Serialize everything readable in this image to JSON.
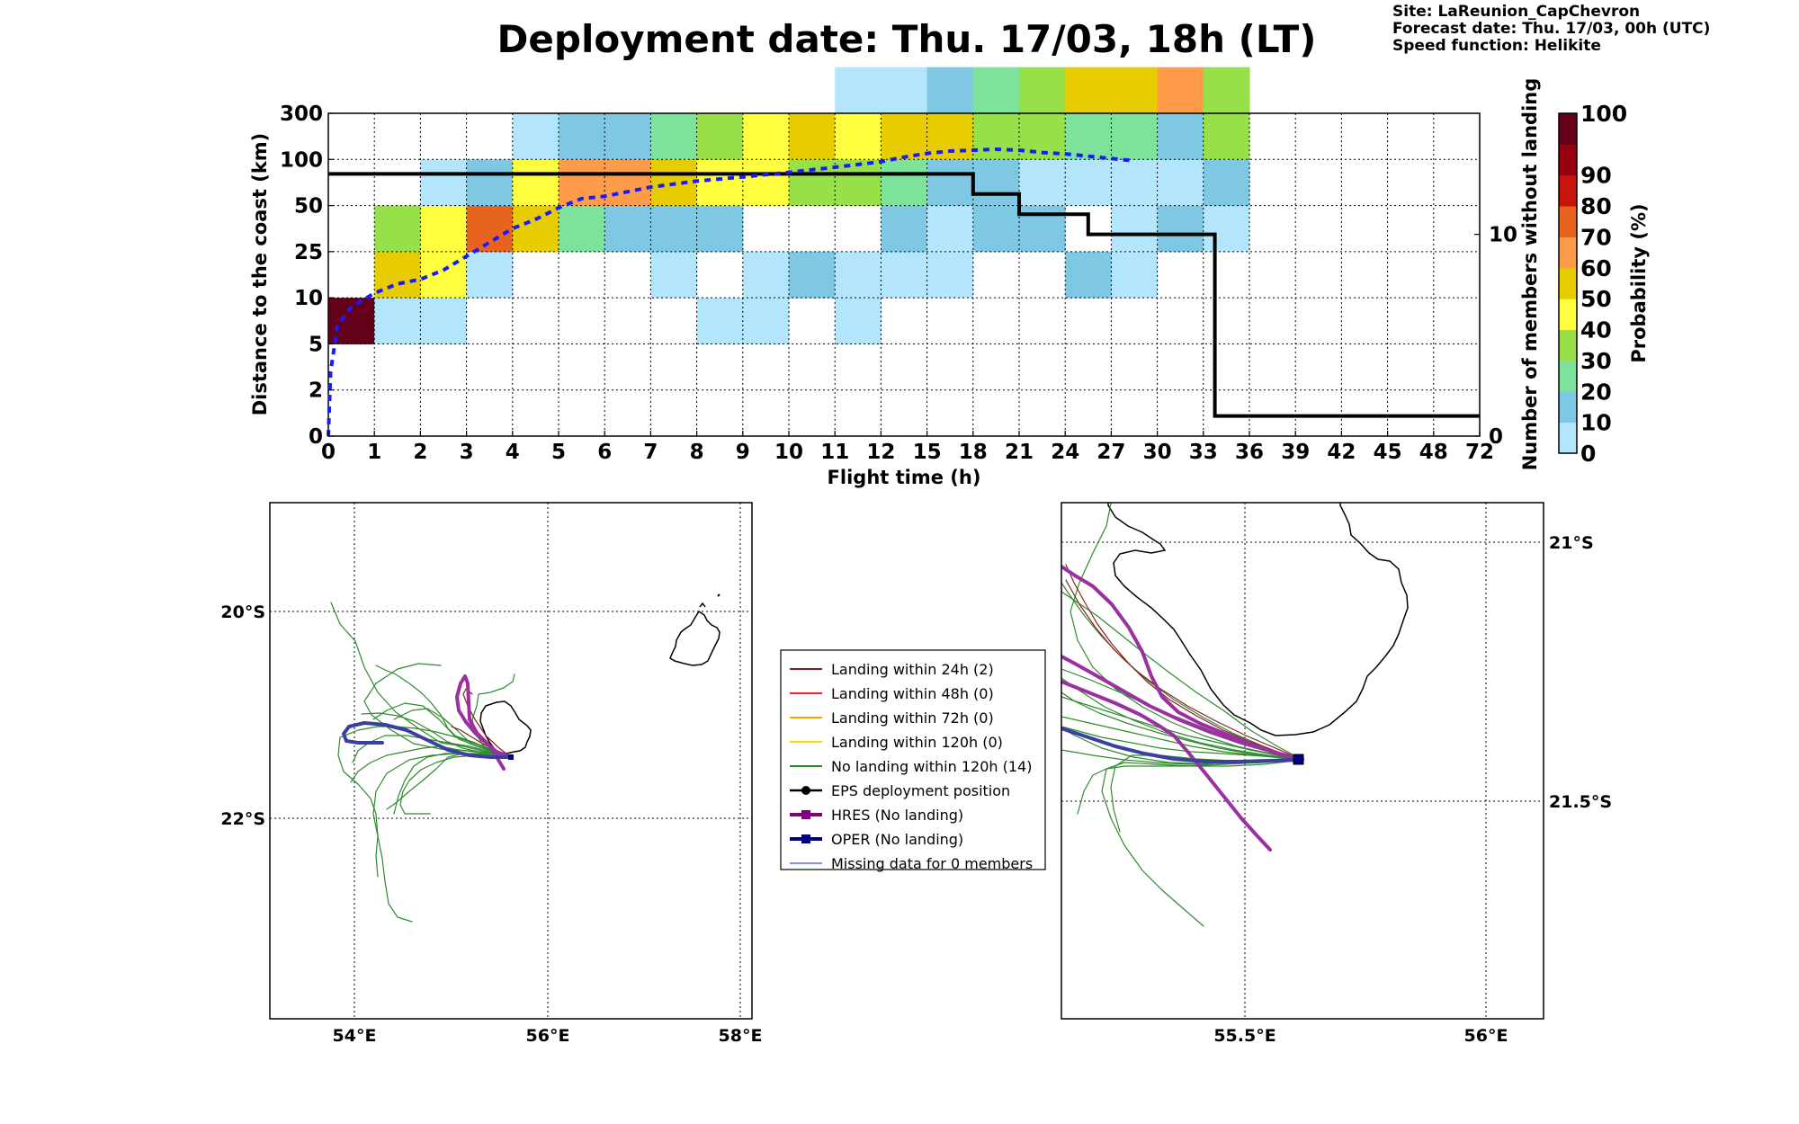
{
  "header": {
    "title": "Deployment date: Thu. 17/03, 18h (LT)",
    "site": "Site: LaReunion_CapChevron",
    "forecast": "Forecast date: Thu. 17/03, 00h (UTC)",
    "speed": "Speed function: Helikite"
  },
  "chart_data": [
    {
      "type": "heatmap",
      "xlabel": "Flight time (h)",
      "ylabel": "Distance to the coast (km)",
      "y2label": "Number of members without landing",
      "colorbar_label": "Probability (%)",
      "x_ticks": [
        "0",
        "1",
        "2",
        "3",
        "4",
        "5",
        "6",
        "7",
        "8",
        "9",
        "10",
        "11",
        "12",
        "15",
        "18",
        "21",
        "24",
        "27",
        "30",
        "33",
        "36",
        "39",
        "42",
        "45",
        "48",
        "72"
      ],
      "y_ticks": [
        "0",
        "2",
        "5",
        "10",
        "25",
        "50",
        "100",
        "300"
      ],
      "y2_ticks": [
        "0",
        "10"
      ],
      "y2_range": [
        0,
        16
      ],
      "colorbar": {
        "ticks": [
          "0",
          "10",
          "20",
          "30",
          "40",
          "50",
          "60",
          "70",
          "80",
          "90",
          "100"
        ],
        "colors": [
          "#b3e5fc",
          "#7ec8e3",
          "#7de39a",
          "#97e04a",
          "#ffff40",
          "#e6cc00",
          "#ff9c4a",
          "#e8641e",
          "#c8140a",
          "#96000f",
          "#640019"
        ]
      },
      "grid": true,
      "cells": [
        {
          "x": 0,
          "y": 2,
          "p": 100
        },
        {
          "x": 1,
          "y": 2,
          "p": 5
        },
        {
          "x": 2,
          "y": 2,
          "p": 5
        },
        {
          "x": 8,
          "y": 2,
          "p": 5
        },
        {
          "x": 9,
          "y": 2,
          "p": 5
        },
        {
          "x": 11,
          "y": 2,
          "p": 5
        },
        {
          "x": 1,
          "y": 3,
          "p": 50
        },
        {
          "x": 2,
          "y": 3,
          "p": 40
        },
        {
          "x": 3,
          "y": 3,
          "p": 5
        },
        {
          "x": 7,
          "y": 3,
          "p": 5
        },
        {
          "x": 9,
          "y": 3,
          "p": 5
        },
        {
          "x": 10,
          "y": 3,
          "p": 15
        },
        {
          "x": 11,
          "y": 3,
          "p": 5
        },
        {
          "x": 12,
          "y": 3,
          "p": 5
        },
        {
          "x": 13,
          "y": 3,
          "p": 5
        },
        {
          "x": 16,
          "y": 3,
          "p": 15
        },
        {
          "x": 17,
          "y": 3,
          "p": 5
        },
        {
          "x": 1,
          "y": 4,
          "p": 30
        },
        {
          "x": 2,
          "y": 4,
          "p": 40
        },
        {
          "x": 3,
          "y": 4,
          "p": 70
        },
        {
          "x": 4,
          "y": 4,
          "p": 50
        },
        {
          "x": 5,
          "y": 4,
          "p": 20
        },
        {
          "x": 6,
          "y": 4,
          "p": 15
        },
        {
          "x": 7,
          "y": 4,
          "p": 15
        },
        {
          "x": 8,
          "y": 4,
          "p": 15
        },
        {
          "x": 12,
          "y": 4,
          "p": 15
        },
        {
          "x": 13,
          "y": 4,
          "p": 5
        },
        {
          "x": 14,
          "y": 4,
          "p": 15
        },
        {
          "x": 15,
          "y": 4,
          "p": 15
        },
        {
          "x": 17,
          "y": 4,
          "p": 5
        },
        {
          "x": 18,
          "y": 4,
          "p": 15
        },
        {
          "x": 19,
          "y": 4,
          "p": 5
        },
        {
          "x": 2,
          "y": 5,
          "p": 5
        },
        {
          "x": 3,
          "y": 5,
          "p": 15
        },
        {
          "x": 4,
          "y": 5,
          "p": 40
        },
        {
          "x": 5,
          "y": 5,
          "p": 60
        },
        {
          "x": 6,
          "y": 5,
          "p": 60
        },
        {
          "x": 7,
          "y": 5,
          "p": 50
        },
        {
          "x": 8,
          "y": 5,
          "p": 40
        },
        {
          "x": 9,
          "y": 5,
          "p": 40
        },
        {
          "x": 10,
          "y": 5,
          "p": 30
        },
        {
          "x": 11,
          "y": 5,
          "p": 30
        },
        {
          "x": 12,
          "y": 5,
          "p": 20
        },
        {
          "x": 13,
          "y": 5,
          "p": 15
        },
        {
          "x": 14,
          "y": 5,
          "p": 15
        },
        {
          "x": 15,
          "y": 5,
          "p": 5
        },
        {
          "x": 16,
          "y": 5,
          "p": 5
        },
        {
          "x": 17,
          "y": 5,
          "p": 5
        },
        {
          "x": 18,
          "y": 5,
          "p": 5
        },
        {
          "x": 19,
          "y": 5,
          "p": 15
        },
        {
          "x": 4,
          "y": 6,
          "p": 5
        },
        {
          "x": 5,
          "y": 6,
          "p": 15
        },
        {
          "x": 6,
          "y": 6,
          "p": 15
        },
        {
          "x": 7,
          "y": 6,
          "p": 20
        },
        {
          "x": 8,
          "y": 6,
          "p": 30
        },
        {
          "x": 9,
          "y": 6,
          "p": 40
        },
        {
          "x": 10,
          "y": 6,
          "p": 50
        },
        {
          "x": 11,
          "y": 6,
          "p": 40
        },
        {
          "x": 12,
          "y": 6,
          "p": 50
        },
        {
          "x": 13,
          "y": 6,
          "p": 50
        },
        {
          "x": 14,
          "y": 6,
          "p": 30
        },
        {
          "x": 15,
          "y": 6,
          "p": 30
        },
        {
          "x": 16,
          "y": 6,
          "p": 20
        },
        {
          "x": 17,
          "y": 6,
          "p": 20
        },
        {
          "x": 18,
          "y": 6,
          "p": 15
        },
        {
          "x": 19,
          "y": 6,
          "p": 30
        },
        {
          "x": 11,
          "y": 7,
          "p": 5
        },
        {
          "x": 12,
          "y": 7,
          "p": 5
        },
        {
          "x": 13,
          "y": 7,
          "p": 15
        },
        {
          "x": 14,
          "y": 7,
          "p": 20
        },
        {
          "x": 15,
          "y": 7,
          "p": 30
        },
        {
          "x": 16,
          "y": 7,
          "p": 50
        },
        {
          "x": 17,
          "y": 7,
          "p": 50
        },
        {
          "x": 18,
          "y": 7,
          "p": 60
        },
        {
          "x": 19,
          "y": 7,
          "p": 30
        }
      ],
      "series": [
        {
          "name": "members-without-landing",
          "style": "black-step",
          "x": [
            0,
            14,
            14,
            15,
            15,
            16,
            16,
            16.5,
            16.5,
            19.25,
            19.25,
            25
          ],
          "y": [
            13,
            13,
            12,
            12,
            11,
            11,
            11,
            11,
            10,
            10,
            1.0,
            1.0
          ]
        },
        {
          "name": "median-distance",
          "style": "blue-dashed",
          "x": [
            0,
            0.05,
            0.2,
            0.5,
            1,
            1.5,
            2,
            2.5,
            3,
            3.5,
            4,
            4.5,
            5,
            5.5,
            6,
            7,
            8,
            9,
            10,
            11,
            12,
            12.5,
            13,
            13.5,
            14,
            14.5,
            15,
            15.5,
            16,
            17,
            17.5
          ],
          "y": [
            0,
            1.4,
            2.4,
            2.8,
            3.1,
            3.3,
            3.4,
            3.6,
            3.9,
            4.2,
            4.5,
            4.7,
            4.95,
            5.15,
            5.2,
            5.4,
            5.53,
            5.62,
            5.72,
            5.83,
            5.95,
            6.05,
            6.13,
            6.18,
            6.2,
            6.22,
            6.2,
            6.15,
            6.12,
            6.02,
            5.97
          ]
        }
      ]
    }
  ],
  "maps": {
    "left": {
      "x_ticks": [
        "54°E",
        "56°E",
        "58°E"
      ],
      "y_ticks": [
        "20°S",
        "22°S"
      ]
    },
    "right": {
      "x_ticks": [
        "55.5°E",
        "56°E"
      ],
      "y_ticks": [
        "21°S",
        "21.5°S"
      ]
    }
  },
  "legend": {
    "items": [
      {
        "label": "Landing within 24h (2)",
        "color": "#8b1a1a"
      },
      {
        "label": "Landing within 48h (0)",
        "color": "#ff2020"
      },
      {
        "label": "Landing within 72h (0)",
        "color": "#ff9a00"
      },
      {
        "label": "Landing within 120h (0)",
        "color": "#ffd700"
      },
      {
        "label": "No landing within 120h (14)",
        "color": "#228b22"
      },
      {
        "label": "EPS deployment position",
        "color": "#000000"
      },
      {
        "label": "HRES (No landing)",
        "color": "#800080"
      },
      {
        "label": "OPER (No landing)",
        "color": "#000080"
      },
      {
        "label": "Missing data for 0 members",
        "color": "#4444ff"
      }
    ]
  }
}
